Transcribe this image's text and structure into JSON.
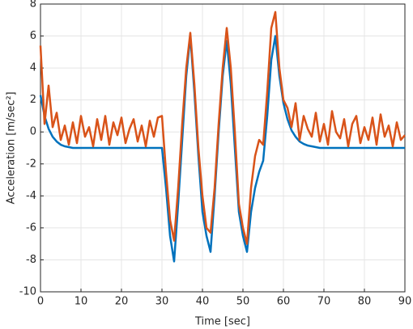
{
  "chart_data": {
    "type": "line",
    "xlabel": "Time [sec]",
    "ylabel": "Acceleration [m/sec²]",
    "x": [
      0,
      1,
      2,
      3,
      4,
      5,
      6,
      7,
      8,
      9,
      10,
      11,
      12,
      13,
      14,
      15,
      16,
      17,
      18,
      19,
      20,
      21,
      22,
      23,
      24,
      25,
      26,
      27,
      28,
      29,
      30,
      31,
      32,
      33,
      34,
      35,
      36,
      37,
      38,
      39,
      40,
      41,
      42,
      43,
      44,
      45,
      46,
      47,
      48,
      49,
      50,
      51,
      52,
      53,
      54,
      55,
      56,
      57,
      58,
      59,
      60,
      61,
      62,
      63,
      64,
      65,
      66,
      67,
      68,
      69,
      70,
      71,
      72,
      73,
      74,
      75,
      76,
      77,
      78,
      79,
      80,
      81,
      82,
      83,
      84,
      85,
      86,
      87,
      88,
      89,
      90
    ],
    "series": [
      {
        "color": "#0072BD",
        "values": [
          2.3,
          1.0,
          0.2,
          -0.3,
          -0.6,
          -0.8,
          -0.9,
          -0.95,
          -1,
          -1,
          -1,
          -1,
          -1,
          -1,
          -1,
          -1,
          -1,
          -1,
          -1,
          -1,
          -1,
          -1,
          -1,
          -1,
          -1,
          -1,
          -1,
          -1,
          -1,
          -1,
          -1,
          -3.5,
          -6.5,
          -8.1,
          -4.5,
          -0.5,
          3.5,
          6.0,
          2.5,
          -1.5,
          -5.0,
          -6.5,
          -7.5,
          -4.0,
          0.0,
          3.5,
          5.7,
          3.0,
          -1.0,
          -5.0,
          -6.5,
          -7.5,
          -5.0,
          -3.5,
          -2.5,
          -1.8,
          1.0,
          4.5,
          6.0,
          3.5,
          1.8,
          0.8,
          0.1,
          -0.3,
          -0.6,
          -0.75,
          -0.85,
          -0.9,
          -0.95,
          -1,
          -1,
          -1,
          -1,
          -1,
          -1,
          -1,
          -1,
          -1,
          -1,
          -1,
          -1,
          -1,
          -1,
          -1,
          -1,
          -1,
          -1,
          -1,
          -1,
          -1,
          -1
        ]
      },
      {
        "color": "#D95319",
        "values": [
          5.4,
          0.5,
          2.9,
          0.3,
          1.2,
          -0.5,
          0.4,
          -0.8,
          0.6,
          -0.7,
          1.0,
          -0.3,
          0.3,
          -0.9,
          0.8,
          -0.5,
          1.0,
          -0.8,
          0.6,
          -0.2,
          0.9,
          -0.7,
          0.2,
          0.8,
          -0.6,
          0.4,
          -0.9,
          0.7,
          -0.3,
          0.9,
          1.0,
          -2.5,
          -5.5,
          -6.8,
          -3.5,
          0.5,
          4.0,
          6.2,
          3.0,
          -1.0,
          -4.0,
          -6.0,
          -6.3,
          -3.5,
          0.5,
          4.0,
          6.5,
          4.0,
          0.0,
          -4.5,
          -6.0,
          -7.0,
          -3.5,
          -1.5,
          -0.5,
          -0.8,
          2.5,
          6.5,
          7.5,
          4.0,
          2.0,
          1.5,
          0.3,
          1.8,
          -0.5,
          1.0,
          0.2,
          -0.3,
          1.2,
          -0.6,
          0.5,
          -0.8,
          1.3,
          0.0,
          -0.4,
          0.8,
          -0.9,
          0.5,
          1.0,
          -0.7,
          0.3,
          -0.5,
          0.9,
          -0.8,
          1.1,
          -0.3,
          0.4,
          -0.9,
          0.6,
          -0.5,
          -0.2
        ]
      }
    ],
    "xlim": [
      0,
      90
    ],
    "xticks": [
      0,
      10,
      20,
      30,
      40,
      50,
      60,
      70,
      80,
      90
    ],
    "ylim": [
      -10,
      8
    ],
    "yticks": [
      -10,
      -8,
      -6,
      -4,
      -2,
      0,
      2,
      4,
      6,
      8
    ],
    "grid": true
  }
}
